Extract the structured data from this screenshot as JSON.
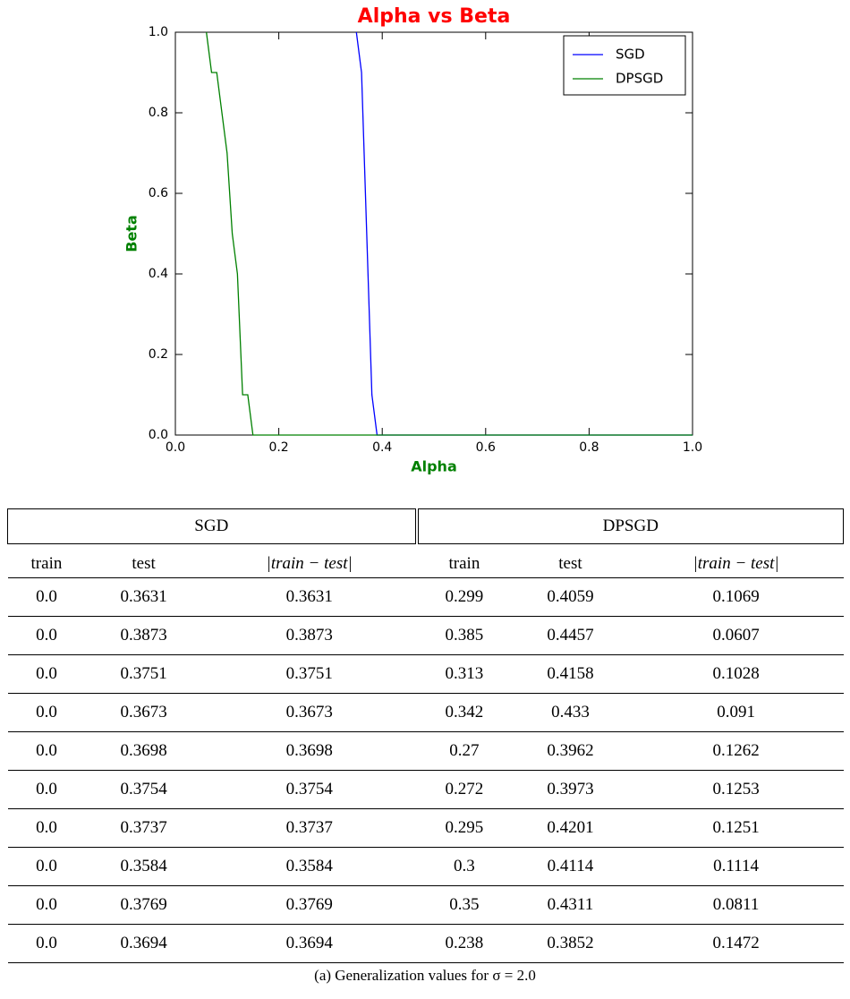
{
  "chart_data": {
    "type": "line",
    "title": "Alpha vs Beta",
    "x_label": "Alpha",
    "y_label": "Beta",
    "series": [
      {
        "name": "SGD",
        "color": "#0000ff",
        "x": [
          0.35,
          0.36,
          0.38,
          0.39,
          1.0
        ],
        "values": [
          1.0,
          0.9,
          0.1,
          0.0,
          0.0
        ]
      },
      {
        "name": "DPSGD",
        "color": "#008000",
        "x": [
          0.06,
          0.07,
          0.08,
          0.1,
          0.11,
          0.12,
          0.13,
          0.14,
          0.15,
          1.0
        ],
        "values": [
          1.0,
          0.9,
          0.9,
          0.7,
          0.5,
          0.4,
          0.1,
          0.1,
          0.0,
          0.0
        ]
      }
    ],
    "xlim": [
      0,
      1
    ],
    "ylim": [
      0,
      1
    ],
    "xticks": [
      {
        "value": 0,
        "label": "0.0"
      },
      0.2,
      0.4,
      0.6,
      0.8,
      {
        "value": 1,
        "label": "1.0"
      }
    ],
    "yticks": [
      {
        "value": 0,
        "label": "0.0"
      },
      0.2,
      0.4,
      0.6,
      0.8,
      {
        "value": 1,
        "label": "1.0"
      }
    ],
    "grid": false,
    "legend": "upper right",
    "title_color": "#ff0000",
    "label_color": "#008000"
  },
  "table": {
    "groups": [
      "SGD",
      "DPSGD"
    ],
    "columns": [
      "train",
      "test",
      "|train − test|",
      "train",
      "test",
      "|train − test|"
    ],
    "rows": [
      [
        "0.0",
        "0.3631",
        "0.3631",
        "0.299",
        "0.4059",
        "0.1069"
      ],
      [
        "0.0",
        "0.3873",
        "0.3873",
        "0.385",
        "0.4457",
        "0.0607"
      ],
      [
        "0.0",
        "0.3751",
        "0.3751",
        "0.313",
        "0.4158",
        "0.1028"
      ],
      [
        "0.0",
        "0.3673",
        "0.3673",
        "0.342",
        "0.433",
        "0.091"
      ],
      [
        "0.0",
        "0.3698",
        "0.3698",
        "0.27",
        "0.3962",
        "0.1262"
      ],
      [
        "0.0",
        "0.3754",
        "0.3754",
        "0.272",
        "0.3973",
        "0.1253"
      ],
      [
        "0.0",
        "0.3737",
        "0.3737",
        "0.295",
        "0.4201",
        "0.1251"
      ],
      [
        "0.0",
        "0.3584",
        "0.3584",
        "0.3",
        "0.4114",
        "0.1114"
      ],
      [
        "0.0",
        "0.3769",
        "0.3769",
        "0.35",
        "0.4311",
        "0.0811"
      ],
      [
        "0.0",
        "0.3694",
        "0.3694",
        "0.238",
        "0.3852",
        "0.1472"
      ]
    ]
  },
  "caption": "(a) Generalization values for σ = 2.0"
}
